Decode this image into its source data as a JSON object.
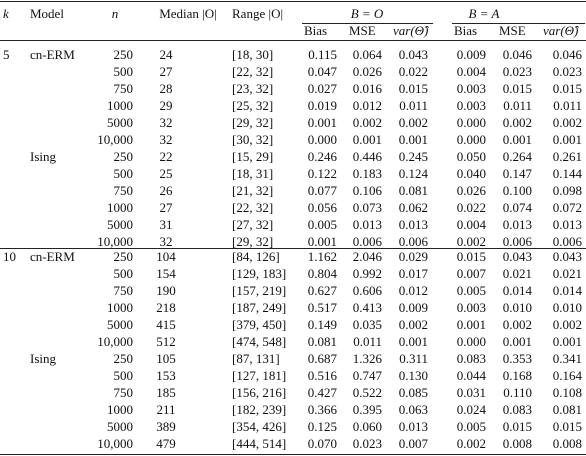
{
  "header": {
    "k": "k",
    "model": "Model",
    "n": "n",
    "median": "Median |O|",
    "range": "Range |O|",
    "group_o": "B = O",
    "group_a": "B = A",
    "sub": [
      "Bias",
      "MSE",
      "var(Θ̂)",
      "Bias",
      "MSE",
      "var(Θ̂)"
    ]
  },
  "groups": [
    {
      "k": "5",
      "blocks": [
        {
          "model": "cn-ERM",
          "rows": [
            [
              "250",
              "24",
              "[18, 30]",
              "0.115",
              "0.064",
              "0.043",
              "0.009",
              "0.046",
              "0.046"
            ],
            [
              "500",
              "27",
              "[22, 32]",
              "0.047",
              "0.026",
              "0.022",
              "0.004",
              "0.023",
              "0.023"
            ],
            [
              "750",
              "28",
              "[23, 32]",
              "0.027",
              "0.016",
              "0.015",
              "0.003",
              "0.015",
              "0.015"
            ],
            [
              "1000",
              "29",
              "[25, 32]",
              "0.019",
              "0.012",
              "0.011",
              "0.003",
              "0.011",
              "0.011"
            ],
            [
              "5000",
              "32",
              "[29, 32]",
              "0.001",
              "0.002",
              "0.002",
              "0.000",
              "0.002",
              "0.002"
            ],
            [
              "10,000",
              "32",
              "[30, 32]",
              "0.000",
              "0.001",
              "0.001",
              "0.000",
              "0.001",
              "0.001"
            ]
          ]
        },
        {
          "model": "Ising",
          "rows": [
            [
              "250",
              "22",
              "[15, 29]",
              "0.246",
              "0.446",
              "0.245",
              "0.050",
              "0.264",
              "0.261"
            ],
            [
              "500",
              "25",
              "[18, 31]",
              "0.122",
              "0.183",
              "0.124",
              "0.040",
              "0.147",
              "0.144"
            ],
            [
              "750",
              "26",
              "[21, 32]",
              "0.077",
              "0.106",
              "0.081",
              "0.026",
              "0.100",
              "0.098"
            ],
            [
              "1000",
              "27",
              "[22, 32]",
              "0.056",
              "0.073",
              "0.062",
              "0.022",
              "0.074",
              "0.072"
            ],
            [
              "5000",
              "31",
              "[27, 32]",
              "0.005",
              "0.013",
              "0.013",
              "0.004",
              "0.013",
              "0.013"
            ],
            [
              "10,000",
              "32",
              "[29, 32]",
              "0.001",
              "0.006",
              "0.006",
              "0.002",
              "0.006",
              "0.006"
            ]
          ]
        }
      ]
    },
    {
      "k": "10",
      "blocks": [
        {
          "model": "cn-ERM",
          "rows": [
            [
              "250",
              "104",
              "[84, 126]",
              "1.162",
              "2.046",
              "0.029",
              "0.015",
              "0.043",
              "0.043"
            ],
            [
              "500",
              "154",
              "[129, 183]",
              "0.804",
              "0.992",
              "0.017",
              "0.007",
              "0.021",
              "0.021"
            ],
            [
              "750",
              "190",
              "[157, 219]",
              "0.627",
              "0.606",
              "0.012",
              "0.005",
              "0.014",
              "0.014"
            ],
            [
              "1000",
              "218",
              "[187, 249]",
              "0.517",
              "0.413",
              "0.009",
              "0.003",
              "0.010",
              "0.010"
            ],
            [
              "5000",
              "415",
              "[379, 450]",
              "0.149",
              "0.035",
              "0.002",
              "0.001",
              "0.002",
              "0.002"
            ],
            [
              "10,000",
              "512",
              "[474, 548]",
              "0.081",
              "0.011",
              "0.001",
              "0.000",
              "0.001",
              "0.001"
            ]
          ]
        },
        {
          "model": "Ising",
          "rows": [
            [
              "250",
              "105",
              "[87, 131]",
              "0.687",
              "1.326",
              "0.311",
              "0.083",
              "0.353",
              "0.341"
            ],
            [
              "500",
              "153",
              "[127, 181]",
              "0.516",
              "0.747",
              "0.130",
              "0.044",
              "0.168",
              "0.164"
            ],
            [
              "750",
              "185",
              "[156, 216]",
              "0.427",
              "0.522",
              "0.085",
              "0.031",
              "0.110",
              "0.108"
            ],
            [
              "1000",
              "211",
              "[182, 239]",
              "0.366",
              "0.395",
              "0.063",
              "0.024",
              "0.083",
              "0.081"
            ],
            [
              "5000",
              "389",
              "[354, 426]",
              "0.125",
              "0.060",
              "0.013",
              "0.005",
              "0.015",
              "0.015"
            ],
            [
              "10,000",
              "479",
              "[444, 514]",
              "0.070",
              "0.023",
              "0.007",
              "0.002",
              "0.008",
              "0.008"
            ]
          ]
        }
      ]
    }
  ]
}
